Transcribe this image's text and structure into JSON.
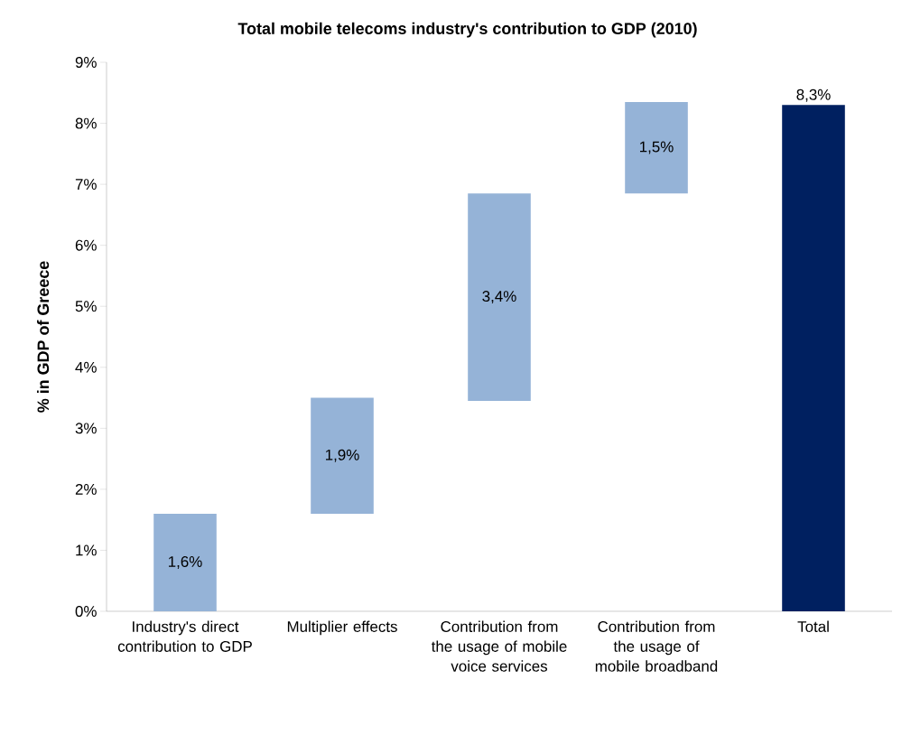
{
  "chart_data": {
    "type": "bar",
    "title": "Total mobile telecoms industry's contribution to GDP (2010)",
    "ylabel": "% in GDP of Greece",
    "categories": [
      "Industry's direct contribution to GDP",
      "Multiplier effects",
      "Contribution from the usage of mobile voice services",
      "Contribution from the usage of mobile broadband",
      "Total"
    ],
    "values": [
      1.6,
      1.9,
      3.4,
      1.5,
      8.3
    ],
    "base": [
      0,
      1.6,
      3.45,
      6.85,
      null
    ],
    "colors": [
      "#95b3d7",
      "#95b3d7",
      "#95b3d7",
      "#95b3d7",
      "#002060"
    ],
    "value_labels": [
      "1,6%",
      "1,9%",
      "3,4%",
      "1,5%",
      "8,3%"
    ],
    "ylim": [
      0,
      9
    ],
    "yticks": [
      {
        "value": 0,
        "label": "0%"
      },
      {
        "value": 1,
        "label": "1%"
      },
      {
        "value": 2,
        "label": "2%"
      },
      {
        "value": 3,
        "label": "3%"
      },
      {
        "value": 4,
        "label": "4%"
      },
      {
        "value": 5,
        "label": "5%"
      },
      {
        "value": 6,
        "label": "6%"
      },
      {
        "value": 7,
        "label": "7%"
      },
      {
        "value": 8,
        "label": "8%"
      },
      {
        "value": 9,
        "label": "9%"
      }
    ],
    "grid": false
  }
}
